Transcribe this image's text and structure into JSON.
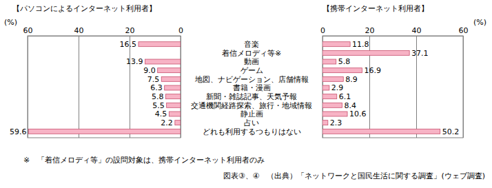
{
  "chart_data": [
    {
      "type": "bar",
      "orientation": "horizontal",
      "title": "【パソコンによるインターネット利用者】",
      "xlabel": "(%)",
      "categories": [
        "音楽",
        "着信メロディ等※",
        "動画",
        "ゲーム",
        "地図、ナビゲーション、店舗情報",
        "書籍・漫画",
        "新聞・雑誌記事、天気予報",
        "交通機関経路探索、旅行・地域情報",
        "静止画",
        "占い",
        "どれも利用するつもりはない"
      ],
      "values": [
        16.5,
        null,
        13.9,
        9.0,
        7.5,
        6.3,
        5.8,
        5.5,
        4.5,
        2.2,
        59.6
      ],
      "value_labels": [
        "16.5",
        null,
        "13.9",
        "9.0",
        "7.5",
        "6.3",
        "5.8",
        "5.5",
        "4.5",
        "2.2",
        "59.6"
      ],
      "color": "#f7b3c5",
      "xlim": [
        60,
        0
      ],
      "xticks": [
        60,
        40,
        20,
        0
      ],
      "grid": true,
      "data_labels": true,
      "annotations": [
        "※　「着信メロディ等」の設問対象は、携帯インターネット利用者のみ",
        "図表③、④　（出典）「ネットワークと国民生活に関する調査」(ウェブ調査)"
      ]
    },
    {
      "type": "bar",
      "orientation": "horizontal",
      "title": "【携帯インターネット利用者】",
      "xlabel": "(%)",
      "values": [
        11.8,
        37.1,
        5.8,
        16.9,
        8.9,
        2.9,
        6.1,
        8.4,
        10.6,
        2.3,
        50.2
      ],
      "value_labels": [
        "11.8",
        "37.1",
        "5.8",
        "16.9",
        "8.9",
        "2.9",
        "6.1",
        "8.4",
        "10.6",
        "2.3",
        "50.2"
      ],
      "color": "#f7b3c5",
      "xlim": [
        0,
        60
      ],
      "xticks": [
        0,
        20,
        40,
        60
      ],
      "grid": true,
      "data_labels": true
    }
  ]
}
